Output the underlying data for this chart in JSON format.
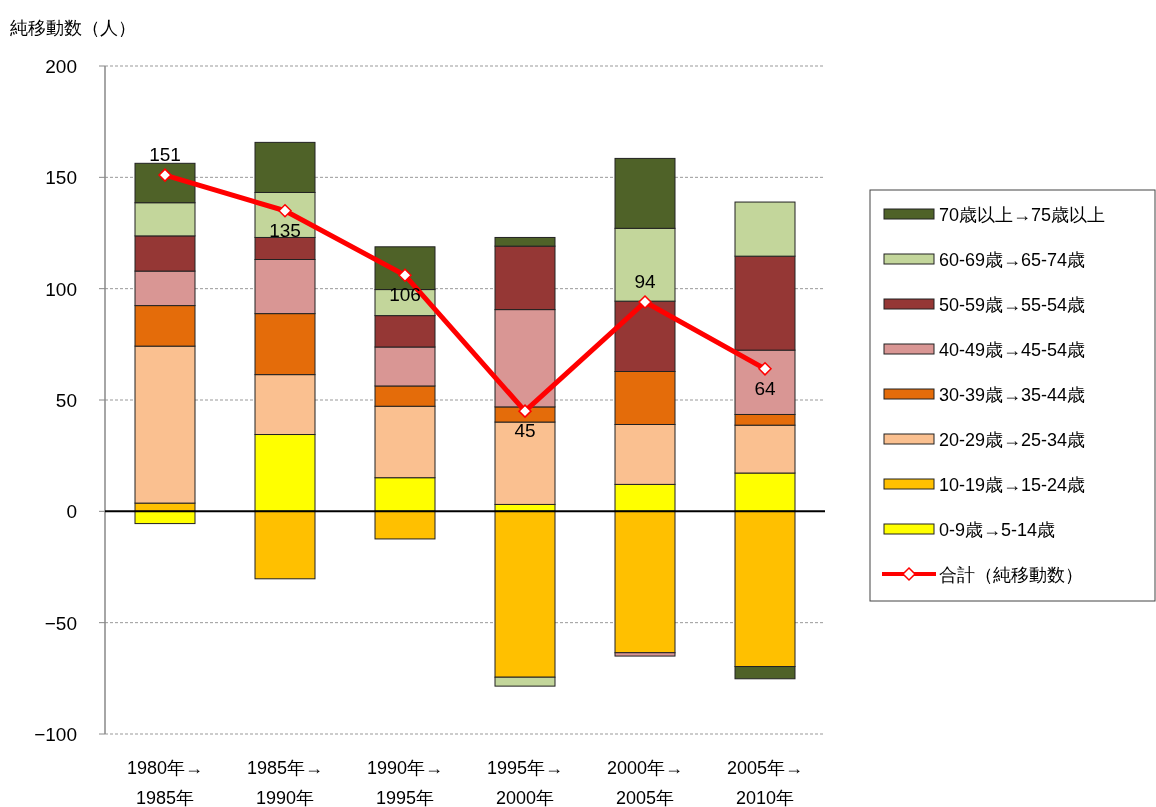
{
  "chart_data": {
    "type": "bar",
    "stacked": true,
    "ylabel": "純移動数（人）",
    "categories": [
      "1980年→1985年",
      "1985年→1990年",
      "1990年→1995年",
      "1995年→2000年",
      "2000年→2005年",
      "2005年→2010年"
    ],
    "ylim": [
      -100,
      200
    ],
    "yticks": [
      -100,
      -50,
      0,
      50,
      100,
      150,
      200
    ],
    "grid": "y",
    "legend": "right",
    "series": [
      {
        "name": "0-9歳→5-14歳",
        "color": "#ffff00",
        "values": [
          -5.5,
          34.5,
          15.1,
          3.1,
          12.1,
          17.2
        ]
      },
      {
        "name": "10-19歳→15-24歳",
        "color": "#ffc000",
        "values": [
          3.7,
          -30.3,
          -12.4,
          -74.5,
          -63.5,
          -69.7
        ]
      },
      {
        "name": "20-29歳→25-34歳",
        "color": "#fac090",
        "values": [
          70.5,
          26.9,
          32.1,
          37.0,
          26.9,
          21.5
        ]
      },
      {
        "name": "30-39歳→35-44歳",
        "color": "#e46c0a",
        "values": [
          18.2,
          27.4,
          9.1,
          6.8,
          23.8,
          4.8
        ]
      },
      {
        "name": "40-49歳→45-54歳",
        "color": "#d99694",
        "values": [
          15.5,
          24.3,
          17.5,
          43.7,
          -1.5,
          28.9
        ]
      },
      {
        "name": "50-59歳→55-54歳",
        "color": "#953735",
        "values": [
          15.8,
          9.9,
          14.1,
          28.5,
          31.6,
          42.2
        ]
      },
      {
        "name": "60-69歳→65-74歳",
        "color": "#c3d69b",
        "values": [
          14.9,
          20.2,
          11.7,
          -4.0,
          32.7,
          24.3
        ]
      },
      {
        "name": "70歳以上→75歳以上",
        "color": "#4f6228",
        "values": [
          17.7,
          22.5,
          19.2,
          3.9,
          31.4,
          -5.5
        ]
      },
      {
        "name": "合計（純移動数）",
        "type": "line",
        "color": "#ff0000",
        "marker": "diamond",
        "data_labels": true,
        "values": [
          151,
          135,
          106,
          45,
          94,
          64
        ]
      }
    ]
  }
}
